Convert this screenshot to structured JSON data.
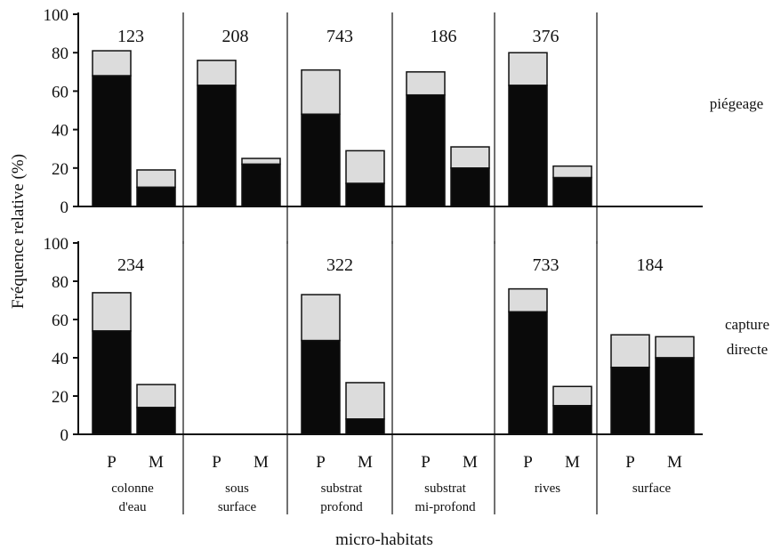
{
  "chart_data": {
    "type": "bar",
    "stacked": true,
    "ylabel": "Fréquence relative (%)",
    "xlabel": "micro-habitats",
    "ylim": [
      0,
      100
    ],
    "yticks": [
      "0",
      "20",
      "40",
      "60",
      "80",
      "100"
    ],
    "categories": [
      [
        "colonne",
        "d'eau"
      ],
      [
        "sous",
        "surface"
      ],
      [
        "substrat",
        "profond"
      ],
      [
        "substrat",
        "mi-profond"
      ],
      [
        "rives"
      ],
      [
        "surface"
      ]
    ],
    "bar_labels": [
      "P",
      "M"
    ],
    "segment_colors": {
      "lower": "#0a0a0a",
      "upper": "#dcdcdc"
    },
    "panels": [
      {
        "label": "piégeage",
        "groups": [
          {
            "count": "123",
            "bars": [
              {
                "lower": 68,
                "total": 81
              },
              {
                "lower": 10,
                "total": 19
              }
            ]
          },
          {
            "count": "208",
            "bars": [
              {
                "lower": 63,
                "total": 76
              },
              {
                "lower": 22,
                "total": 25
              }
            ]
          },
          {
            "count": "743",
            "bars": [
              {
                "lower": 48,
                "total": 71
              },
              {
                "lower": 12,
                "total": 29
              }
            ]
          },
          {
            "count": "186",
            "bars": [
              {
                "lower": 58,
                "total": 70
              },
              {
                "lower": 20,
                "total": 31
              }
            ]
          },
          {
            "count": "376",
            "bars": [
              {
                "lower": 63,
                "total": 80
              },
              {
                "lower": 15,
                "total": 21
              }
            ]
          },
          {
            "count": "",
            "bars": []
          }
        ]
      },
      {
        "label": "capture directe",
        "groups": [
          {
            "count": "234",
            "bars": [
              {
                "lower": 54,
                "total": 74
              },
              {
                "lower": 14,
                "total": 26
              }
            ]
          },
          {
            "count": "",
            "bars": []
          },
          {
            "count": "322",
            "bars": [
              {
                "lower": 49,
                "total": 73
              },
              {
                "lower": 8,
                "total": 27
              }
            ]
          },
          {
            "count": "",
            "bars": []
          },
          {
            "count": "733",
            "bars": [
              {
                "lower": 64,
                "total": 76
              },
              {
                "lower": 15,
                "total": 25
              }
            ]
          },
          {
            "count": "184",
            "bars": [
              {
                "lower": 35,
                "total": 52
              },
              {
                "lower": 40,
                "total": 51
              }
            ]
          }
        ]
      }
    ]
  }
}
